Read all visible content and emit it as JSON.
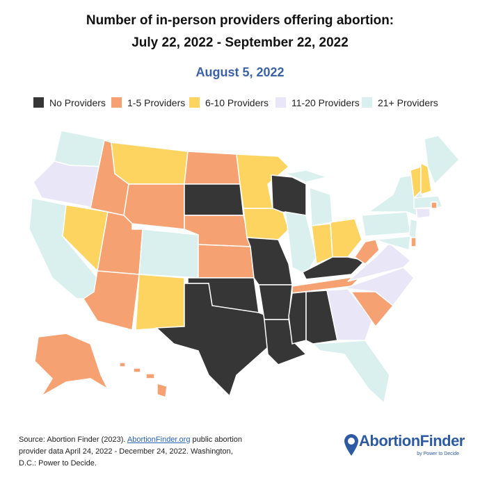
{
  "header": {
    "title_line1": "Number of in-person providers offering abortion:",
    "title_line2": "July 22, 2022 - September 22, 2022",
    "date": "August 5, 2022"
  },
  "legend": [
    {
      "label": "No Providers",
      "color": "#363636"
    },
    {
      "label": "1-5 Providers",
      "color": "#f5a172"
    },
    {
      "label": "6-10 Providers",
      "color": "#fdd460"
    },
    {
      "label": "11-20 Providers",
      "color": "#e8e6f7"
    },
    {
      "label": "21+ Providers",
      "color": "#daf0ee"
    }
  ],
  "map": {
    "state_categories": [
      4,
      3,
      4,
      2,
      1,
      2,
      1,
      1,
      4,
      1,
      2,
      1,
      0,
      1,
      1,
      0,
      0,
      2,
      2,
      0,
      0,
      0,
      0,
      4,
      4,
      4,
      2,
      2,
      0,
      1,
      0,
      0,
      3,
      4,
      1,
      3,
      3,
      1,
      4,
      4,
      4,
      4,
      1,
      2,
      2,
      4,
      4,
      3,
      1,
      1,
      1
    ]
  },
  "footer": {
    "source_before": "Source: Abortion Finder (2023). ",
    "source_link": "AbortionFinder.org",
    "source_after": " public abortion provider data April 24, 2022 - December 24, 2022. Washington, D.C.: Power to Decide.",
    "logo": "AbortionFinder",
    "logo_tagline": "by Power to Decide"
  }
}
